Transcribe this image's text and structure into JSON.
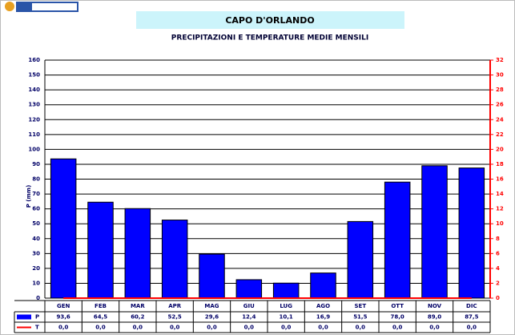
{
  "chart_data": {
    "type": "bar",
    "title": "CAPO D'ORLANDO",
    "subtitle": "PRECIPITAZIONI E TEMPERATURE MEDIE MENSILI",
    "y_label": "P (mm)",
    "categories": [
      "GEN",
      "FEB",
      "MAR",
      "APR",
      "MAG",
      "GIU",
      "LUG",
      "AGO",
      "SET",
      "OTT",
      "NOV",
      "DIC"
    ],
    "series": [
      {
        "name": "P",
        "color": "#0000ff",
        "values": [
          93.6,
          64.5,
          60.2,
          52.5,
          29.6,
          12.4,
          10.1,
          16.9,
          51.5,
          78.0,
          89.0,
          87.5
        ],
        "value_labels": [
          "93,6",
          "64,5",
          "60,2",
          "52,5",
          "29,6",
          "12,4",
          "10,1",
          "16,9",
          "51,5",
          "78,0",
          "89,0",
          "87,5"
        ]
      },
      {
        "name": "T",
        "color": "#ff0000",
        "axis": "y2",
        "values": [
          0,
          0,
          0,
          0,
          0,
          0,
          0,
          0,
          0,
          0,
          0,
          0
        ],
        "value_labels": [
          "0,0",
          "0,0",
          "0,0",
          "0,0",
          "0,0",
          "0,0",
          "0,0",
          "0,0",
          "0,0",
          "0,0",
          "0,0",
          "0,0"
        ]
      }
    ],
    "ylim": [
      0,
      160
    ],
    "yticks": [
      0,
      10,
      20,
      30,
      40,
      50,
      60,
      70,
      80,
      90,
      100,
      110,
      120,
      130,
      140,
      150,
      160
    ],
    "y2lim": [
      0,
      32
    ],
    "y2ticks": [
      0,
      2,
      4,
      6,
      8,
      10,
      12,
      14,
      16,
      18,
      20,
      22,
      24,
      26,
      28,
      30,
      32
    ],
    "grid": true
  }
}
